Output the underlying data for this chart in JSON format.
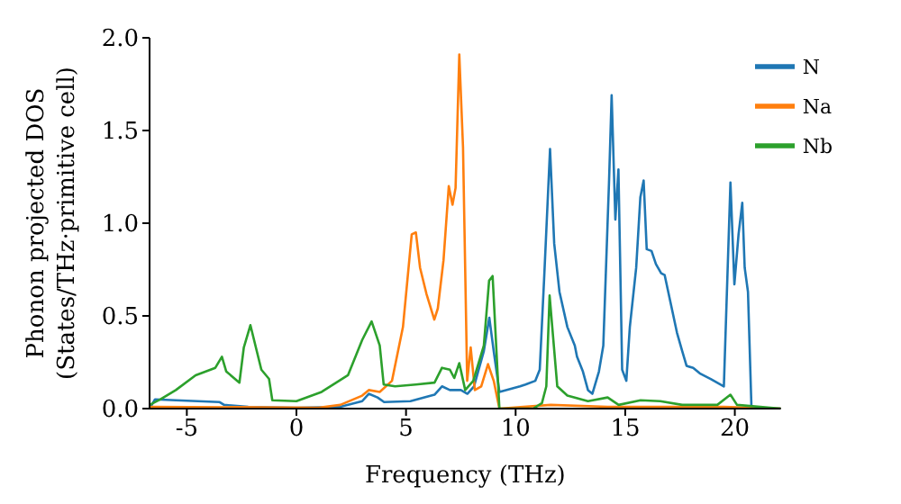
{
  "chart_data": {
    "type": "line",
    "xlabel": "Frequency (THz)",
    "ylabel": "Phonon projected DOS\n(States/THz·primitive cell)",
    "xlim": [
      -6.7,
      22.1
    ],
    "xticks": [
      -5,
      0,
      5,
      10,
      15,
      20
    ],
    "ylim": [
      0,
      2
    ],
    "yticks": [
      {
        "value": 0,
        "label": "0.0"
      },
      {
        "value": 0.5,
        "label": "0.5"
      },
      {
        "value": 1,
        "label": "1.0"
      },
      {
        "value": 1.5,
        "label": "1.5"
      },
      {
        "value": 2,
        "label": "2.0"
      }
    ],
    "grid": false,
    "legend": "top right",
    "marker": "none",
    "line_style": "solid",
    "series": [
      {
        "name": "N",
        "color": "#1f77b4",
        "x": [
          -6.7,
          -6.45,
          -5.5,
          -3.5,
          -3.3,
          -2.2,
          0,
          2,
          3,
          3.3,
          3.7,
          4.0,
          5.2,
          6.3,
          6.64,
          7.0,
          7.5,
          7.8,
          8.1,
          8.55,
          8.8,
          9.0,
          9.26,
          10.2,
          10.45,
          10.9,
          11.1,
          11.3,
          11.57,
          11.76,
          12.0,
          12.36,
          12.7,
          12.8,
          13.07,
          13.3,
          13.5,
          13.8,
          14.0,
          14.26,
          14.38,
          14.55,
          14.69,
          14.86,
          15.05,
          15.21,
          15.5,
          15.69,
          15.84,
          15.98,
          16.2,
          16.4,
          16.64,
          16.8,
          17.07,
          17.36,
          17.6,
          17.8,
          18.1,
          18.4,
          18.9,
          19.5,
          19.8,
          19.98,
          20.17,
          20.34,
          20.45,
          20.6,
          20.76,
          22.1
        ],
        "values": [
          0,
          0.05,
          0.045,
          0.035,
          0.02,
          0.01,
          0.005,
          0.01,
          0.04,
          0.08,
          0.06,
          0.035,
          0.04,
          0.075,
          0.12,
          0.1,
          0.1,
          0.08,
          0.12,
          0.31,
          0.49,
          0.31,
          0.09,
          0.12,
          0.13,
          0.15,
          0.21,
          0.7,
          1.4,
          0.89,
          0.63,
          0.44,
          0.34,
          0.28,
          0.2,
          0.1,
          0.08,
          0.2,
          0.34,
          1.22,
          1.69,
          1.02,
          1.29,
          0.21,
          0.15,
          0.44,
          0.76,
          1.14,
          1.23,
          0.86,
          0.85,
          0.78,
          0.73,
          0.72,
          0.57,
          0.41,
          0.31,
          0.23,
          0.22,
          0.19,
          0.16,
          0.12,
          1.22,
          0.67,
          0.94,
          1.11,
          0.76,
          0.63,
          0,
          0
        ]
      },
      {
        "name": "Na",
        "color": "#ff7f0e",
        "x": [
          -6.7,
          1,
          2,
          3,
          3.3,
          3.8,
          4.36,
          4.86,
          5.26,
          5.45,
          5.64,
          5.93,
          6.29,
          6.45,
          6.71,
          6.95,
          7.12,
          7.26,
          7.43,
          7.6,
          7.79,
          7.95,
          8.14,
          8.43,
          8.74,
          9.0,
          9.26,
          11.6,
          14.2,
          19.5,
          22.1
        ],
        "values": [
          0.01,
          0.005,
          0.02,
          0.07,
          0.1,
          0.09,
          0.15,
          0.44,
          0.94,
          0.95,
          0.76,
          0.62,
          0.48,
          0.54,
          0.8,
          1.2,
          1.1,
          1.19,
          1.91,
          1.41,
          0.15,
          0.33,
          0.1,
          0.12,
          0.24,
          0.15,
          0,
          0.02,
          0.01,
          0.01,
          0
        ]
      },
      {
        "name": "Nb",
        "color": "#2ca02c",
        "x": [
          -6.7,
          -6.2,
          -5.5,
          -4.6,
          -3.7,
          -3.4,
          -3.2,
          -2.6,
          -2.4,
          -2.1,
          -1.6,
          -1.25,
          -1.1,
          0,
          1.15,
          2.35,
          3.0,
          3.43,
          3.8,
          3.98,
          4.5,
          5.45,
          6.3,
          6.64,
          7.0,
          7.2,
          7.43,
          7.7,
          8.07,
          8.55,
          8.79,
          8.95,
          9.26,
          10.8,
          11.2,
          11.4,
          11.55,
          11.9,
          12.36,
          13.3,
          14.2,
          14.7,
          15.7,
          16.6,
          17.6,
          19.2,
          19.8,
          20.1,
          22.1
        ],
        "values": [
          0.02,
          0.05,
          0.1,
          0.18,
          0.22,
          0.28,
          0.2,
          0.14,
          0.33,
          0.45,
          0.21,
          0.16,
          0.045,
          0.04,
          0.09,
          0.18,
          0.37,
          0.47,
          0.34,
          0.13,
          0.12,
          0.13,
          0.14,
          0.22,
          0.21,
          0.165,
          0.245,
          0.1,
          0.15,
          0.34,
          0.69,
          0.715,
          0,
          0,
          0.03,
          0.12,
          0.61,
          0.12,
          0.07,
          0.04,
          0.06,
          0.02,
          0.045,
          0.04,
          0.02,
          0.02,
          0.075,
          0.02,
          0
        ]
      }
    ]
  }
}
